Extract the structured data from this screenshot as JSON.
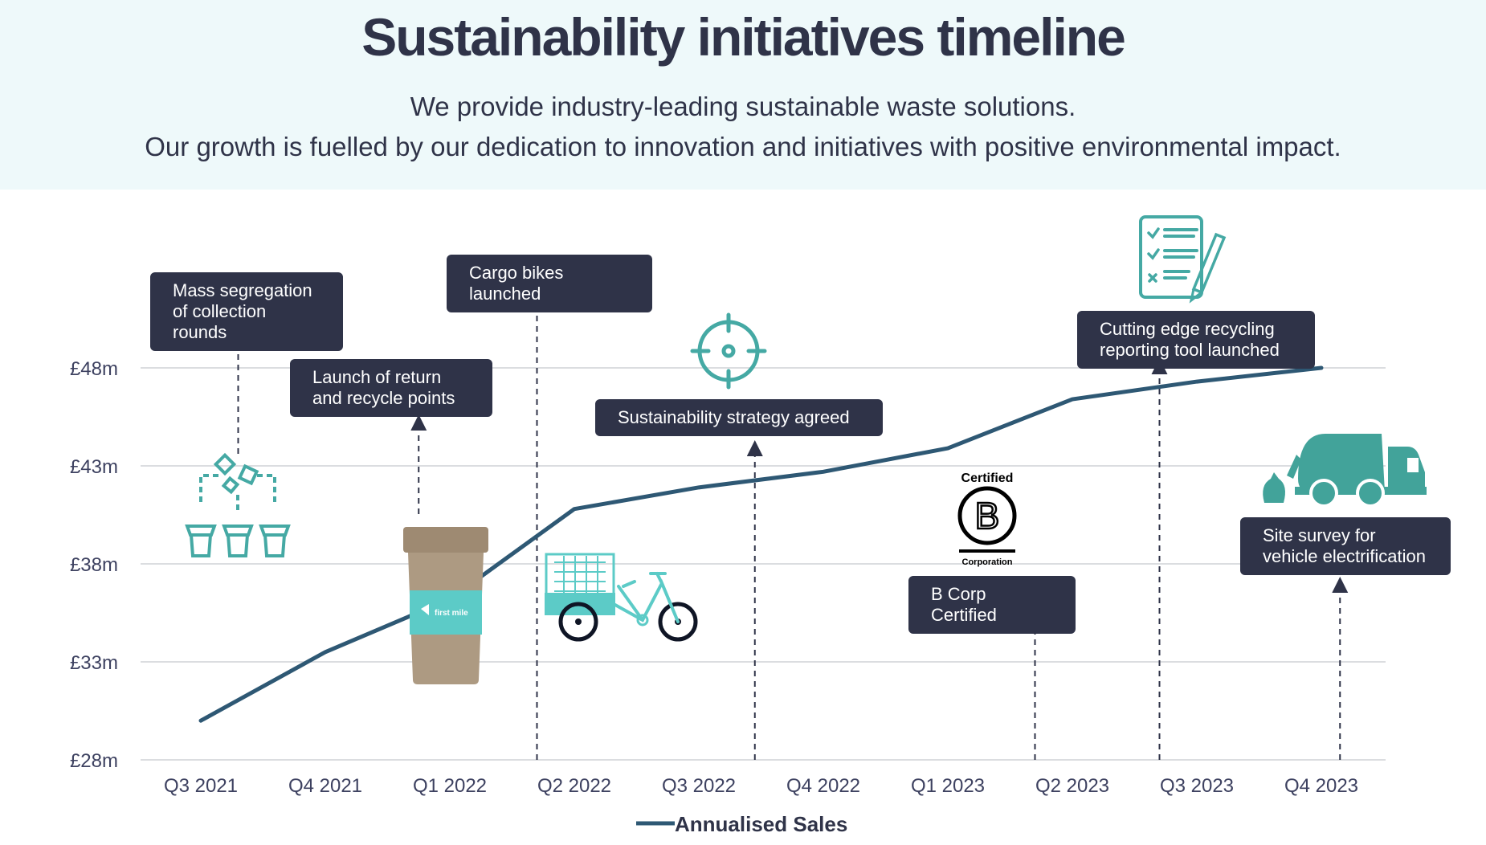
{
  "header": {
    "title": "Sustainability initiatives timeline",
    "subtitle_line1": "We provide industry-leading sustainable waste solutions.",
    "subtitle_line2": "Our growth is fuelled by our dedication to innovation and initiatives with positive environmental impact."
  },
  "colors": {
    "header_bg": "#eef9fa",
    "line": "#2e5874",
    "callout_bg": "#2f3348",
    "icon_teal": "#45a9a4",
    "cup_brown": "#ad9a82"
  },
  "chart_data": {
    "type": "line",
    "categories": [
      "Q3 2021",
      "Q4 2021",
      "Q1 2022",
      "Q2 2022",
      "Q3 2022",
      "Q4 2022",
      "Q1 2023",
      "Q2 2023",
      "Q3 2023",
      "Q4 2023"
    ],
    "series": [
      {
        "name": "Annualised Sales",
        "values": [
          30.0,
          33.5,
          36.2,
          40.8,
          41.9,
          42.7,
          43.9,
          46.4,
          47.3,
          48.0
        ]
      }
    ],
    "yticks": [
      "£28m",
      "£33m",
      "£38m",
      "£43m",
      "£48m"
    ],
    "ytick_values": [
      28,
      33,
      38,
      43,
      48
    ],
    "ylim": [
      28,
      48
    ],
    "grid": true,
    "legend": "bottom-center",
    "annotations": [
      {
        "label": "Mass segregation of collection rounds",
        "category_pos": 0.3,
        "icon": "waste-segregation-bins-icon"
      },
      {
        "label": "Launch of return and recycle points",
        "category_pos": 1.75,
        "icon": "recycle-cup-icon"
      },
      {
        "label": "Cargo bikes launched",
        "category_pos": 2.7,
        "icon": "cargo-bike-icon"
      },
      {
        "label": "Sustainability strategy agreed",
        "category_pos": 4.45,
        "icon": "target-icon"
      },
      {
        "label": "B Corp Certified",
        "category_pos": 6.7,
        "icon": "b-corp-logo"
      },
      {
        "label": "Cutting edge recycling reporting tool launched",
        "category_pos": 7.7,
        "icon": "checklist-icon"
      },
      {
        "label": "Site survey for vehicle electrification",
        "category_pos": 9.15,
        "icon": "waste-truck-icon"
      }
    ]
  },
  "logos": {
    "cup_brand": "first mile",
    "bcorp_top": "Certified",
    "bcorp_bottom": "Corporation"
  }
}
